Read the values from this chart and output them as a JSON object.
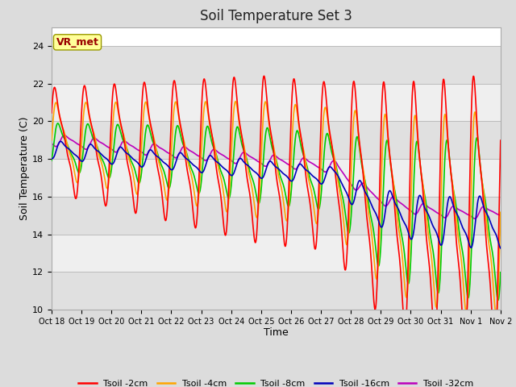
{
  "title": "Soil Temperature Set 3",
  "xlabel": "Time",
  "ylabel": "Soil Temperature (C)",
  "ylim": [
    10,
    25
  ],
  "yticks": [
    10,
    12,
    14,
    16,
    18,
    20,
    22,
    24
  ],
  "annotation_text": "VR_met",
  "series": {
    "Tsoil -2cm": {
      "color": "#FF0000",
      "linewidth": 1.2
    },
    "Tsoil -4cm": {
      "color": "#FFA500",
      "linewidth": 1.2
    },
    "Tsoil -8cm": {
      "color": "#00CC00",
      "linewidth": 1.2
    },
    "Tsoil -16cm": {
      "color": "#0000BB",
      "linewidth": 1.2
    },
    "Tsoil -32cm": {
      "color": "#BB00BB",
      "linewidth": 1.2
    }
  },
  "background_color": "#DCDCDC",
  "plot_bg_color": "#FFFFFF",
  "band_colors": [
    "#E8E8E8",
    "#F5F5F5"
  ],
  "grid_color": "#CCCCCC",
  "start_day": 18,
  "end_day": 33,
  "points_per_day": 96,
  "label_color": "#990000",
  "annotation_bg": "#FFFF99",
  "annotation_edge": "#999900"
}
